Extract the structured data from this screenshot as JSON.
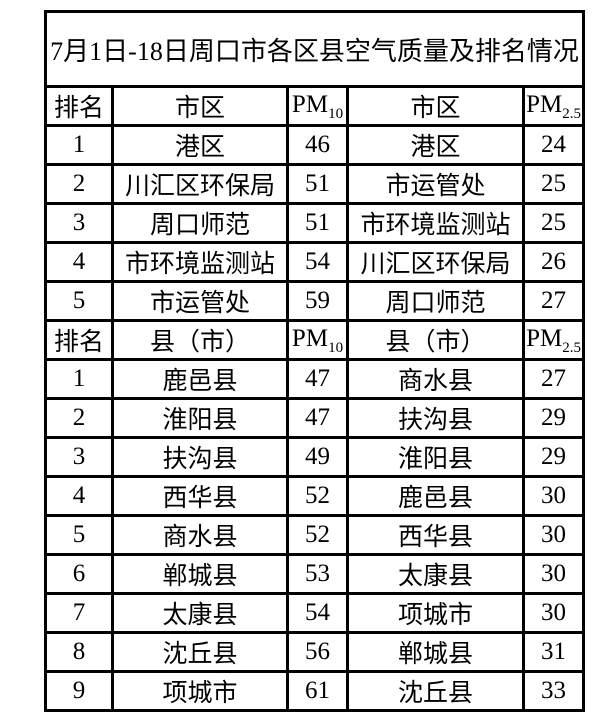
{
  "title": "7月1日-18日周口市各区县空气质量及排名情况",
  "table": {
    "sections": [
      {
        "header": {
          "rank": "排名",
          "region1": "市区",
          "pm_label": "PM",
          "pm10_sub": "10",
          "region2": "市区",
          "pm25_sub": "2.5"
        },
        "rows": [
          {
            "rank": "1",
            "region1": "港区",
            "pm10": "46",
            "region2": "港区",
            "pm25": "24"
          },
          {
            "rank": "2",
            "region1": "川汇区环保局",
            "pm10": "51",
            "region2": "市运管处",
            "pm25": "25"
          },
          {
            "rank": "3",
            "region1": "周口师范",
            "pm10": "51",
            "region2": "市环境监测站",
            "pm25": "25"
          },
          {
            "rank": "4",
            "region1": "市环境监测站",
            "pm10": "54",
            "region2": "川汇区环保局",
            "pm25": "26"
          },
          {
            "rank": "5",
            "region1": "市运管处",
            "pm10": "59",
            "region2": "周口师范",
            "pm25": "27"
          }
        ]
      },
      {
        "header": {
          "rank": "排名",
          "region1": "县（市）",
          "pm_label": "PM",
          "pm10_sub": "10",
          "region2": "县（市）",
          "pm25_sub": "2.5"
        },
        "rows": [
          {
            "rank": "1",
            "region1": "鹿邑县",
            "pm10": "47",
            "region2": "商水县",
            "pm25": "27"
          },
          {
            "rank": "2",
            "region1": "淮阳县",
            "pm10": "47",
            "region2": "扶沟县",
            "pm25": "29"
          },
          {
            "rank": "3",
            "region1": "扶沟县",
            "pm10": "49",
            "region2": "淮阳县",
            "pm25": "29"
          },
          {
            "rank": "4",
            "region1": "西华县",
            "pm10": "52",
            "region2": "鹿邑县",
            "pm25": "30"
          },
          {
            "rank": "5",
            "region1": "商水县",
            "pm10": "52",
            "region2": "西华县",
            "pm25": "30"
          },
          {
            "rank": "6",
            "region1": "郸城县",
            "pm10": "53",
            "region2": "太康县",
            "pm25": "30"
          },
          {
            "rank": "7",
            "region1": "太康县",
            "pm10": "54",
            "region2": "项城市",
            "pm25": "30"
          },
          {
            "rank": "8",
            "region1": "沈丘县",
            "pm10": "56",
            "region2": "郸城县",
            "pm25": "31"
          },
          {
            "rank": "9",
            "region1": "项城市",
            "pm10": "61",
            "region2": "沈丘县",
            "pm25": "33"
          }
        ]
      }
    ]
  },
  "chart_data": {
    "type": "table",
    "title": "7月1日-18日周口市各区县空气质量及排名情况",
    "sections": [
      {
        "name": "市区",
        "columns": [
          "排名",
          "市区",
          "PM10",
          "市区",
          "PM2.5"
        ],
        "rows": [
          [
            1,
            "港区",
            46,
            "港区",
            24
          ],
          [
            2,
            "川汇区环保局",
            51,
            "市运管处",
            25
          ],
          [
            3,
            "周口师范",
            51,
            "市环境监测站",
            25
          ],
          [
            4,
            "市环境监测站",
            54,
            "川汇区环保局",
            26
          ],
          [
            5,
            "市运管处",
            59,
            "周口师范",
            27
          ]
        ]
      },
      {
        "name": "县（市）",
        "columns": [
          "排名",
          "县（市）",
          "PM10",
          "县（市）",
          "PM2.5"
        ],
        "rows": [
          [
            1,
            "鹿邑县",
            47,
            "商水县",
            27
          ],
          [
            2,
            "淮阳县",
            47,
            "扶沟县",
            29
          ],
          [
            3,
            "扶沟县",
            49,
            "淮阳县",
            29
          ],
          [
            4,
            "西华县",
            52,
            "鹿邑县",
            30
          ],
          [
            5,
            "商水县",
            52,
            "西华县",
            30
          ],
          [
            6,
            "郸城县",
            53,
            "太康县",
            30
          ],
          [
            7,
            "太康县",
            54,
            "项城市",
            30
          ],
          [
            8,
            "沈丘县",
            56,
            "郸城县",
            31
          ],
          [
            9,
            "项城市",
            61,
            "沈丘县",
            33
          ]
        ]
      }
    ],
    "layout": {
      "grid": true,
      "border_color": "#000000",
      "background": "#ffffff"
    }
  }
}
